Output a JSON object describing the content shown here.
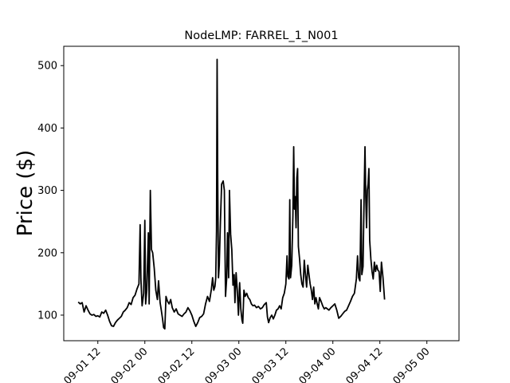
{
  "chart_data": {
    "type": "line",
    "title": "NodeLMP: FARREL_1_N001",
    "xlabel": "",
    "ylabel": "Price ($)",
    "x_unit": "hour",
    "x_start": "09-01 00",
    "x_ticks": [
      {
        "label": "09-01 12",
        "x": 12
      },
      {
        "label": "09-02 00",
        "x": 24
      },
      {
        "label": "09-02 12",
        "x": 36
      },
      {
        "label": "09-03 00",
        "x": 48
      },
      {
        "label": "09-03 12",
        "x": 60
      },
      {
        "label": "09-04 00",
        "x": 72
      },
      {
        "label": "09-04 12",
        "x": 84
      },
      {
        "label": "09-05 00",
        "x": 96
      }
    ],
    "y_ticks": [
      100,
      200,
      300,
      400,
      500
    ],
    "xlim": [
      3.3,
      104.2
    ],
    "ylim": [
      59,
      531
    ],
    "grid": false,
    "series": [
      {
        "name": "",
        "color": "#000000",
        "points": [
          [
            7,
            121
          ],
          [
            7.5,
            118
          ],
          [
            8,
            120
          ],
          [
            8.5,
            105
          ],
          [
            9,
            115
          ],
          [
            9.5,
            108
          ],
          [
            10,
            102
          ],
          [
            10.5,
            100
          ],
          [
            11,
            101
          ],
          [
            11.5,
            98
          ],
          [
            12,
            99
          ],
          [
            12.5,
            97
          ],
          [
            13,
            105
          ],
          [
            13.5,
            103
          ],
          [
            14,
            108
          ],
          [
            14.5,
            100
          ],
          [
            15,
            90
          ],
          [
            15.5,
            83
          ],
          [
            16,
            82
          ],
          [
            16.5,
            88
          ],
          [
            17,
            92
          ],
          [
            17.5,
            95
          ],
          [
            18,
            98
          ],
          [
            18.5,
            105
          ],
          [
            19,
            108
          ],
          [
            19.5,
            112
          ],
          [
            20,
            120
          ],
          [
            20.5,
            117
          ],
          [
            21,
            128
          ],
          [
            21.5,
            132
          ],
          [
            22,
            142
          ],
          [
            22.5,
            150
          ],
          [
            22.8,
            245
          ],
          [
            23,
            158
          ],
          [
            23.3,
            115
          ],
          [
            23.7,
            135
          ],
          [
            24,
            252
          ],
          [
            24.2,
            118
          ],
          [
            24.5,
            140
          ],
          [
            24.9,
            232
          ],
          [
            25.1,
            118
          ],
          [
            25.4,
            300
          ],
          [
            25.7,
            205
          ],
          [
            26,
            200
          ],
          [
            26.4,
            175
          ],
          [
            26.8,
            140
          ],
          [
            27.2,
            125
          ],
          [
            27.5,
            155
          ],
          [
            27.9,
            120
          ],
          [
            28.2,
            108
          ],
          [
            28.5,
            95
          ],
          [
            28.8,
            80
          ],
          [
            29.1,
            78
          ],
          [
            29.4,
            130
          ],
          [
            29.8,
            122
          ],
          [
            30.2,
            118
          ],
          [
            30.6,
            125
          ],
          [
            31,
            112
          ],
          [
            31.5,
            105
          ],
          [
            32,
            110
          ],
          [
            32.5,
            102
          ],
          [
            33,
            100
          ],
          [
            33.5,
            98
          ],
          [
            34,
            102
          ],
          [
            34.5,
            105
          ],
          [
            35,
            112
          ],
          [
            35.5,
            107
          ],
          [
            36,
            100
          ],
          [
            36.5,
            90
          ],
          [
            37,
            82
          ],
          [
            37.5,
            88
          ],
          [
            38,
            96
          ],
          [
            38.5,
            98
          ],
          [
            39,
            102
          ],
          [
            39.5,
            118
          ],
          [
            40,
            130
          ],
          [
            40.5,
            122
          ],
          [
            41,
            142
          ],
          [
            41.3,
            160
          ],
          [
            41.6,
            140
          ],
          [
            41.9,
            146
          ],
          [
            42.1,
            160
          ],
          [
            42.3,
            235
          ],
          [
            42.45,
            510
          ],
          [
            42.6,
            320
          ],
          [
            42.8,
            160
          ],
          [
            43,
            180
          ],
          [
            43.3,
            250
          ],
          [
            43.6,
            310
          ],
          [
            44,
            315
          ],
          [
            44.3,
            300
          ],
          [
            44.6,
            130
          ],
          [
            44.9,
            160
          ],
          [
            45.1,
            232
          ],
          [
            45.4,
            160
          ],
          [
            45.6,
            300
          ],
          [
            45.9,
            230
          ],
          [
            46.2,
            205
          ],
          [
            46.5,
            148
          ],
          [
            46.8,
            165
          ],
          [
            47,
            120
          ],
          [
            47.3,
            168
          ],
          [
            47.6,
            140
          ],
          [
            47.9,
            100
          ],
          [
            48.2,
            152
          ],
          [
            48.5,
            110
          ],
          [
            48.8,
            92
          ],
          [
            49,
            87
          ],
          [
            49.3,
            140
          ],
          [
            49.6,
            130
          ],
          [
            50,
            135
          ],
          [
            50.4,
            128
          ],
          [
            50.8,
            125
          ],
          [
            51.2,
            118
          ],
          [
            51.6,
            115
          ],
          [
            52,
            116
          ],
          [
            52.5,
            112
          ],
          [
            53,
            114
          ],
          [
            53.5,
            110
          ],
          [
            54,
            112
          ],
          [
            54.5,
            117
          ],
          [
            55,
            120
          ],
          [
            55.3,
            97
          ],
          [
            55.6,
            88
          ],
          [
            56,
            96
          ],
          [
            56.4,
            100
          ],
          [
            56.8,
            94
          ],
          [
            57.2,
            100
          ],
          [
            57.6,
            108
          ],
          [
            58,
            110
          ],
          [
            58.4,
            115
          ],
          [
            58.8,
            110
          ],
          [
            59.2,
            128
          ],
          [
            59.6,
            135
          ],
          [
            60,
            150
          ],
          [
            60.3,
            195
          ],
          [
            60.5,
            162
          ],
          [
            60.8,
            158
          ],
          [
            61,
            285
          ],
          [
            61.2,
            160
          ],
          [
            61.5,
            180
          ],
          [
            61.8,
            260
          ],
          [
            62,
            370
          ],
          [
            62.2,
            270
          ],
          [
            62.4,
            290
          ],
          [
            62.6,
            240
          ],
          [
            62.8,
            320
          ],
          [
            63,
            335
          ],
          [
            63.2,
            210
          ],
          [
            63.5,
            190
          ],
          [
            63.8,
            165
          ],
          [
            64.1,
            150
          ],
          [
            64.4,
            145
          ],
          [
            64.7,
            188
          ],
          [
            65,
            165
          ],
          [
            65.3,
            145
          ],
          [
            65.6,
            180
          ],
          [
            65.9,
            165
          ],
          [
            66.2,
            150
          ],
          [
            66.5,
            140
          ],
          [
            66.8,
            125
          ],
          [
            67.1,
            145
          ],
          [
            67.4,
            118
          ],
          [
            67.7,
            128
          ],
          [
            68,
            118
          ],
          [
            68.3,
            110
          ],
          [
            68.6,
            128
          ],
          [
            69,
            122
          ],
          [
            69.4,
            115
          ],
          [
            69.8,
            110
          ],
          [
            70.2,
            112
          ],
          [
            70.6,
            110
          ],
          [
            71,
            108
          ],
          [
            71.5,
            112
          ],
          [
            72,
            115
          ],
          [
            72.5,
            118
          ],
          [
            73,
            108
          ],
          [
            73.5,
            95
          ],
          [
            74,
            98
          ],
          [
            74.5,
            102
          ],
          [
            75,
            106
          ],
          [
            75.5,
            108
          ],
          [
            76,
            115
          ],
          [
            76.5,
            122
          ],
          [
            77,
            130
          ],
          [
            77.5,
            135
          ],
          [
            78,
            158
          ],
          [
            78.3,
            195
          ],
          [
            78.6,
            160
          ],
          [
            78.9,
            155
          ],
          [
            79.2,
            285
          ],
          [
            79.4,
            165
          ],
          [
            79.7,
            178
          ],
          [
            80,
            300
          ],
          [
            80.2,
            370
          ],
          [
            80.4,
            290
          ],
          [
            80.6,
            240
          ],
          [
            80.8,
            300
          ],
          [
            81,
            310
          ],
          [
            81.2,
            335
          ],
          [
            81.4,
            220
          ],
          [
            81.7,
            190
          ],
          [
            82,
            170
          ],
          [
            82.3,
            158
          ],
          [
            82.6,
            185
          ],
          [
            82.9,
            170
          ],
          [
            83.2,
            180
          ],
          [
            83.5,
            172
          ],
          [
            83.8,
            170
          ],
          [
            84.1,
            138
          ],
          [
            84.4,
            185
          ],
          [
            84.8,
            160
          ],
          [
            85.2,
            125
          ]
        ]
      }
    ]
  }
}
